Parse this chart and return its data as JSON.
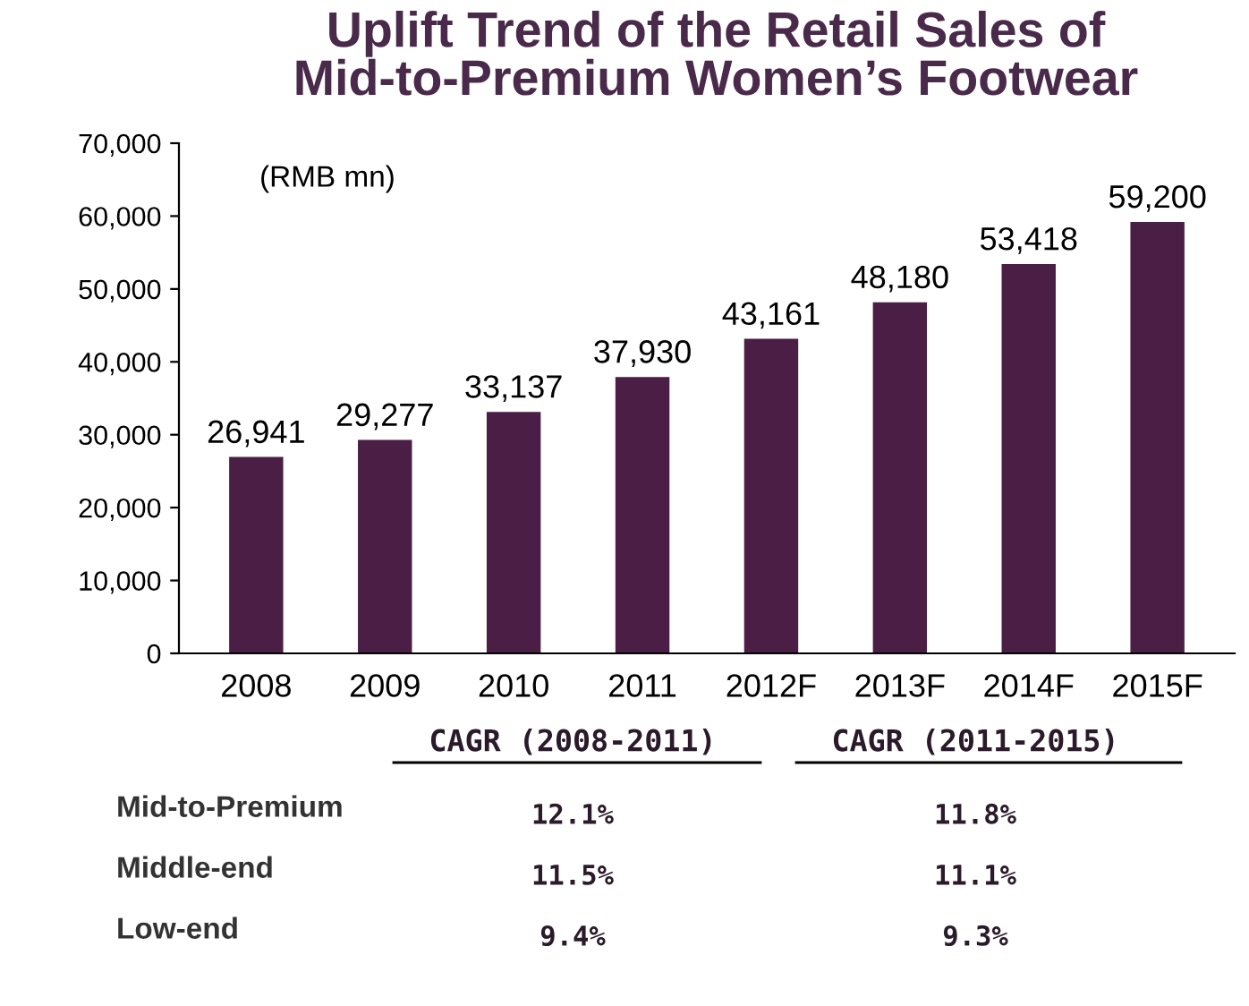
{
  "chart_data": {
    "type": "bar",
    "title": "Uplift Trend of the Retail Sales of\nMid-to-Premium Women’s Footwear",
    "categories": [
      "2008",
      "2009",
      "2010",
      "2011",
      "2012F",
      "2013F",
      "2014F",
      "2015F"
    ],
    "values": [
      26941,
      29277,
      33137,
      37930,
      43161,
      48180,
      53418,
      59200
    ],
    "value_labels": [
      "26,941",
      "29,277",
      "33,137",
      "37,930",
      "43,161",
      "48,180",
      "53,418",
      "59,200"
    ],
    "color": "#4a1e45",
    "ylim": [
      0,
      70000
    ],
    "yticks": [
      0,
      {
        "value": 10000,
        "label": "10,000"
      },
      {
        "value": 20000,
        "label": "20,000"
      },
      {
        "value": 30000,
        "label": "30,000"
      },
      {
        "value": 40000,
        "label": "40,000"
      },
      {
        "value": 50000,
        "label": "50,000"
      },
      {
        "value": 60000,
        "label": "60,000"
      },
      {
        "value": 70000,
        "label": "70,000"
      }
    ],
    "grid": false,
    "legend": false,
    "annotations": [
      "(RMB mn)",
      "CAGR (2008-2011)",
      "CAGR (2011-2015)",
      "Mid-to-Premium",
      "12.1%",
      "11.8%",
      "Middle-end",
      "11.5%",
      "11.1%",
      "Low-end",
      "9.4%",
      "9.3%"
    ]
  }
}
